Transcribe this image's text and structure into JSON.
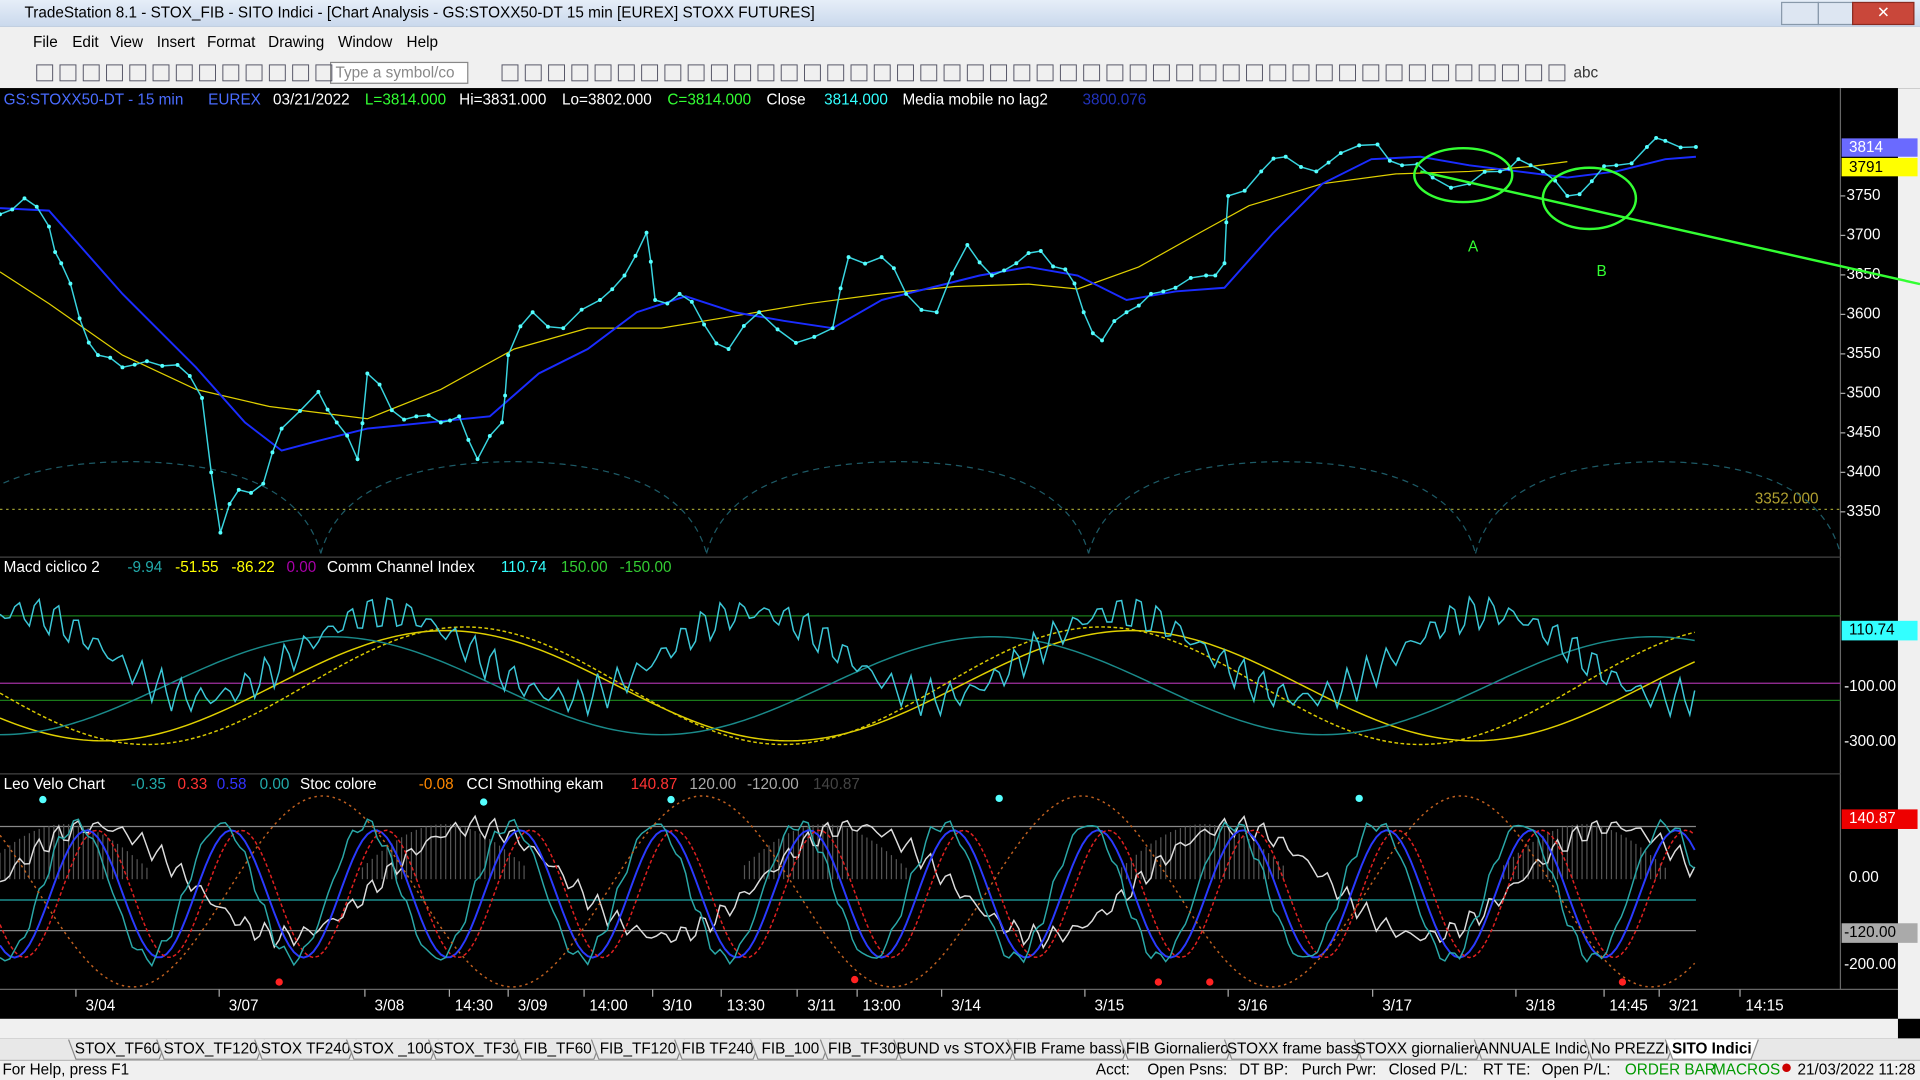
{
  "title_bar": {
    "title": "TradeStation 8.1 - STOX_FIB - SITO Indici - [Chart Analysis - GS:STOXX50-DT  15 min  [EUREX] STOXX FUTURES]"
  },
  "menu": [
    "File",
    "Edit",
    "View",
    "Insert",
    "Format",
    "Drawing",
    "Window",
    "Help"
  ],
  "toolbar": {
    "symbol_box": "Type a symbol/co",
    "abc": "abc"
  },
  "price_panel": {
    "legend": [
      "GS:STOXX50-DT - 15 min",
      "EUREX",
      "03/21/2022",
      "L=3814.000",
      "Hi=3831.000",
      "Lo=3802.000",
      "C=3814.000",
      "Close",
      "3814.000",
      "Media mobile no lag2",
      "3800.076"
    ],
    "axis_labels": [
      "3750",
      "3700",
      "3650",
      "3600",
      "3550",
      "3500",
      "3450",
      "3400",
      "3350"
    ],
    "last_price": "3814",
    "ma_price": "3791",
    "cycle_level": "3352.000",
    "annotations": [
      "A",
      "B"
    ]
  },
  "macd_panel": {
    "legend": [
      "Macd ciclico 2",
      "-9.94",
      "-51.55",
      "-86.22",
      "0.00",
      "Comm Channel Index",
      "110.74",
      "150.00",
      "-150.00"
    ],
    "axis_labels": [
      "110.74",
      "-100.00",
      "-300.00"
    ]
  },
  "leo_panel": {
    "legend": [
      "Leo Velo Chart",
      "-0.35",
      "0.33",
      "0.58",
      "0.00",
      "Stoc colore",
      "-0.08",
      "CCI Smothing ekam",
      "140.87",
      "120.00",
      "-120.00",
      "140.87"
    ],
    "axis_labels": [
      "140.87",
      "0.00",
      "-120.00",
      "-200.00"
    ]
  },
  "time_axis": [
    "3/04",
    "3/07",
    "3/08",
    "14:30",
    "3/09",
    "14:00",
    "3/10",
    "13:30",
    "3/11",
    "13:00",
    "3/14",
    "3/15",
    "3/16",
    "3/17",
    "3/18",
    "14:45",
    "3/21",
    "14:15"
  ],
  "tabs": [
    "STOX_TF60",
    "STOX_TF120",
    "STOX TF240",
    "STOX _100",
    "STOX_TF30",
    "FIB_TF60",
    "FIB_TF120",
    "FIB TF240",
    "FIB_100",
    "FIB_TF30",
    "BUND vs STOXX",
    "FIB Frame bassi",
    "FIB Giornaliero",
    "STOXX frame bassi",
    "STOXX giornaliero",
    "ANNUALE Indici",
    "No PREZZI",
    "SITO Indici"
  ],
  "status_bar": [
    "For Help, press F1",
    "Acct:",
    "Open Psns:",
    "DT BP:",
    "Purch Pwr:",
    "Closed P/L:",
    "RT TE:",
    "Open P/L:",
    "ORDER BAR",
    "MACROS",
    "21/03/2022 11:28"
  ]
}
